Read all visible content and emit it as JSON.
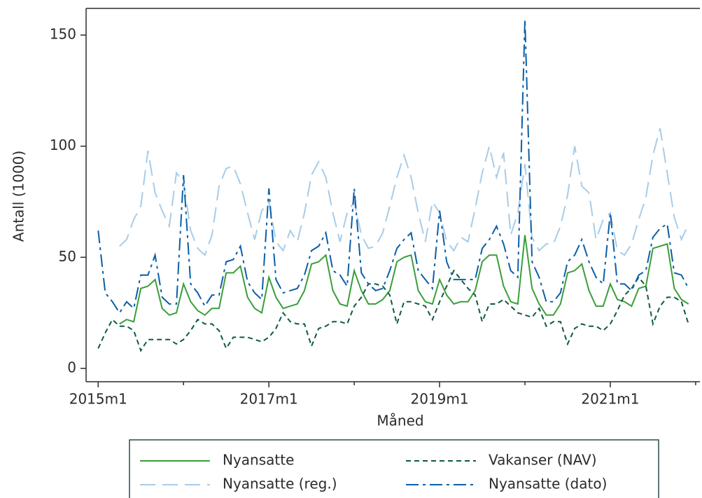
{
  "chart_data": {
    "type": "line",
    "x_label": "Måned",
    "y_label": "Antall (1000)",
    "x": [
      0,
      1,
      2,
      3,
      4,
      5,
      6,
      7,
      8,
      9,
      10,
      11,
      12,
      13,
      14,
      15,
      16,
      17,
      18,
      19,
      20,
      21,
      22,
      23,
      24,
      25,
      26,
      27,
      28,
      29,
      30,
      31,
      32,
      33,
      34,
      35,
      36,
      37,
      38,
      39,
      40,
      41,
      42,
      43,
      44,
      45,
      46,
      47,
      48,
      49,
      50,
      51,
      52,
      53,
      54,
      55,
      56,
      57,
      58,
      59,
      60,
      61,
      62,
      63,
      64,
      65,
      66,
      67,
      68,
      69,
      70,
      71,
      72,
      73,
      74,
      75,
      76,
      77,
      78,
      79,
      80,
      81,
      82,
      83
    ],
    "xlim": [
      -1.7,
      84.6
    ],
    "xticks": [
      {
        "value": 0,
        "label": "2015m1"
      },
      {
        "value": 24,
        "label": "2017m1"
      },
      {
        "value": 48,
        "label": "2019m1"
      },
      {
        "value": 72,
        "label": "2021m1"
      }
    ],
    "xminor_ticks": [
      12,
      36,
      60,
      84
    ],
    "ylim": [
      -6,
      162
    ],
    "yticks": [
      0,
      50,
      100,
      150
    ],
    "grid": false,
    "legend_position": "bottom",
    "series": [
      {
        "name": "Nyansatte",
        "color": "#3a9e3a",
        "linestyle": "solid",
        "values": [
          null,
          null,
          null,
          20,
          22,
          21,
          36,
          37,
          40,
          27,
          24,
          25,
          38,
          30,
          26,
          24,
          27,
          27,
          43,
          43,
          46,
          32,
          27,
          25,
          41,
          32,
          27,
          28,
          29,
          35,
          47,
          48,
          51,
          35,
          29,
          28,
          44,
          35,
          29,
          29,
          31,
          35,
          48,
          50,
          51,
          35,
          30,
          29,
          40,
          33,
          29,
          30,
          30,
          35,
          48,
          51,
          51,
          37,
          30,
          29,
          60,
          36,
          29,
          24,
          24,
          29,
          43,
          44,
          47,
          35,
          28,
          28,
          38,
          31,
          30,
          28,
          36,
          37,
          54,
          55,
          56,
          36,
          31,
          29
        ]
      },
      {
        "name": "Vakanser (NAV)",
        "color": "#0e5a45",
        "linestyle": "dashed",
        "values": [
          9,
          16,
          22,
          19,
          19,
          17,
          8,
          13,
          13,
          13,
          13,
          11,
          13,
          17,
          22,
          20,
          20,
          17,
          9,
          14,
          14,
          14,
          13,
          12,
          14,
          18,
          25,
          21,
          20,
          20,
          10,
          18,
          19,
          21,
          21,
          20,
          28,
          32,
          38,
          38,
          37,
          33,
          20,
          30,
          30,
          29,
          28,
          22,
          30,
          37,
          44,
          40,
          36,
          33,
          21,
          29,
          29,
          31,
          28,
          25,
          24,
          23,
          27,
          19,
          21,
          21,
          11,
          18,
          20,
          19,
          19,
          17,
          20,
          26,
          33,
          36,
          41,
          37,
          20,
          28,
          32,
          32,
          30,
          20
        ]
      },
      {
        "name": "Nyansatte (reg.)",
        "color": "#a8cce8",
        "linestyle": "long-dash",
        "values": [
          null,
          null,
          null,
          55,
          58,
          67,
          73,
          98,
          79,
          71,
          64,
          88,
          84,
          62,
          54,
          51,
          60,
          82,
          90,
          91,
          83,
          70,
          58,
          71,
          75,
          57,
          53,
          62,
          57,
          70,
          87,
          93,
          86,
          70,
          57,
          70,
          75,
          60,
          54,
          55,
          61,
          73,
          86,
          96,
          86,
          70,
          57,
          75,
          70,
          57,
          53,
          59,
          57,
          72,
          88,
          100,
          86,
          97,
          60,
          70,
          92,
          59,
          53,
          56,
          56,
          64,
          78,
          100,
          82,
          79,
          58,
          67,
          70,
          53,
          51,
          56,
          67,
          77,
          96,
          108,
          88,
          68,
          58,
          65
        ]
      },
      {
        "name": "Nyansatte (dato)",
        "color": "#0b5ea8",
        "linestyle": "dash-dot",
        "values": [
          62,
          34,
          30,
          25,
          30,
          27,
          42,
          42,
          51,
          32,
          29,
          29,
          87,
          38,
          34,
          28,
          33,
          33,
          48,
          49,
          55,
          39,
          34,
          31,
          81,
          40,
          34,
          35,
          36,
          42,
          53,
          55,
          61,
          44,
          42,
          37,
          81,
          43,
          38,
          35,
          36,
          44,
          54,
          58,
          61,
          44,
          40,
          36,
          71,
          48,
          40,
          40,
          40,
          40,
          54,
          58,
          64,
          56,
          44,
          41,
          157,
          48,
          41,
          30,
          30,
          34,
          48,
          51,
          58,
          48,
          41,
          38,
          70,
          38,
          38,
          35,
          42,
          44,
          59,
          63,
          65,
          43,
          42,
          36
        ]
      }
    ]
  }
}
